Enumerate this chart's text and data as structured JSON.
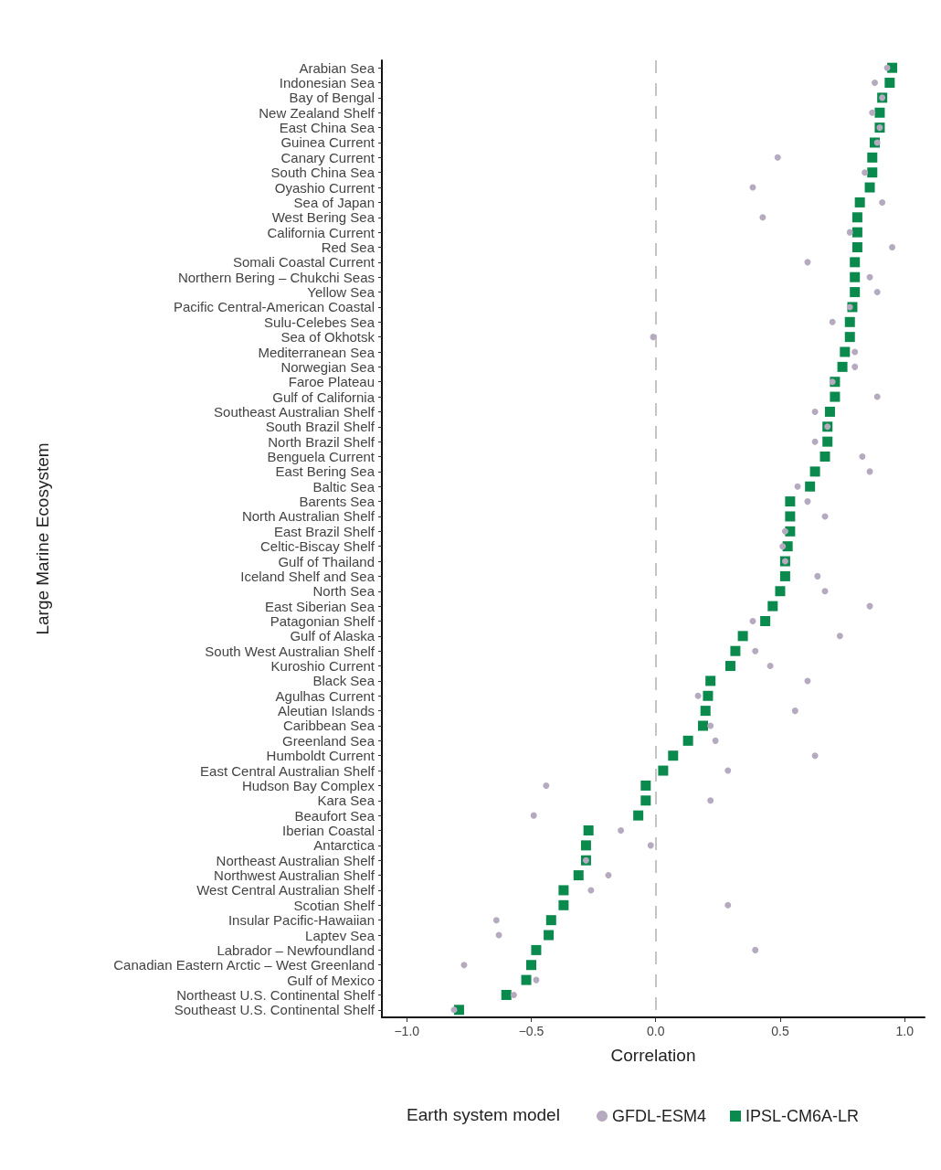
{
  "chart_data": {
    "type": "scatter",
    "orientation": "horizontal",
    "xlabel": "Correlation",
    "ylabel": "Large Marine Ecosystem",
    "legend_title": "Earth system model",
    "legend": "bottom",
    "grid": false,
    "categories": [
      "Arabian Sea",
      "Indonesian Sea",
      "Bay of Bengal",
      "New Zealand Shelf",
      "East China Sea",
      "Guinea Current",
      "Canary Current",
      "South China Sea",
      "Oyashio Current",
      "Sea of Japan",
      "West Bering Sea",
      "California Current",
      "Red Sea",
      "Somali Coastal Current",
      "Northern Bering – Chukchi Seas",
      "Yellow Sea",
      "Pacific Central-American Coastal",
      "Sulu-Celebes Sea",
      "Sea of Okhotsk",
      "Mediterranean Sea",
      "Norwegian Sea",
      "Faroe Plateau",
      "Gulf of California",
      "Southeast Australian Shelf",
      "South Brazil Shelf",
      "North Brazil Shelf",
      "Benguela Current",
      "East Bering Sea",
      "Baltic Sea",
      "Barents Sea",
      "North Australian Shelf",
      "East Brazil Shelf",
      "Celtic-Biscay Shelf",
      "Gulf of Thailand",
      "Iceland Shelf and Sea",
      "North Sea",
      "East Siberian Sea",
      "Patagonian Shelf",
      "Gulf of Alaska",
      "South West Australian Shelf",
      "Kuroshio Current",
      "Black Sea",
      "Agulhas Current",
      "Aleutian Islands",
      "Caribbean Sea",
      "Greenland Sea",
      "Humboldt Current",
      "East Central Australian Shelf",
      "Hudson Bay Complex",
      "Kara Sea",
      "Beaufort Sea",
      "Iberian Coastal",
      "Antarctica",
      "Northeast Australian Shelf",
      "Northwest Australian Shelf",
      "West Central Australian Shelf",
      "Scotian Shelf",
      "Insular Pacific-Hawaiian",
      "Laptev Sea",
      "Labrador – Newfoundland",
      "Canadian Eastern Arctic – West Greenland",
      "Gulf of Mexico",
      "Northeast U.S. Continental Shelf",
      "Southeast U.S. Continental Shelf"
    ],
    "series": [
      {
        "name": "GFDL-ESM4",
        "marker": "circle",
        "color": "#b5aabf",
        "values": [
          0.93,
          0.88,
          0.91,
          0.87,
          0.9,
          0.89,
          0.49,
          0.84,
          0.39,
          0.91,
          0.43,
          0.78,
          0.95,
          0.61,
          0.86,
          0.89,
          0.78,
          0.71,
          -0.01,
          0.8,
          0.8,
          0.71,
          0.89,
          0.64,
          0.69,
          0.64,
          0.83,
          0.86,
          0.57,
          0.61,
          0.68,
          0.52,
          0.51,
          0.52,
          0.65,
          0.68,
          0.86,
          0.39,
          0.74,
          0.4,
          0.46,
          0.61,
          0.17,
          0.56,
          0.22,
          0.24,
          0.64,
          0.29,
          -0.44,
          0.22,
          -0.49,
          -0.14,
          -0.02,
          -0.28,
          -0.19,
          -0.26,
          0.29,
          -0.64,
          -0.63,
          0.4,
          -0.77,
          -0.48,
          -0.57,
          -0.81
        ]
      },
      {
        "name": "IPSL-CM6A-LR",
        "marker": "square",
        "color": "#0a8a4c",
        "values": [
          0.95,
          0.94,
          0.91,
          0.9,
          0.9,
          0.88,
          0.87,
          0.87,
          0.86,
          0.82,
          0.81,
          0.81,
          0.81,
          0.8,
          0.8,
          0.8,
          0.79,
          0.78,
          0.78,
          0.76,
          0.75,
          0.72,
          0.72,
          0.7,
          0.69,
          0.69,
          0.68,
          0.64,
          0.62,
          0.54,
          0.54,
          0.54,
          0.53,
          0.52,
          0.52,
          0.5,
          0.47,
          0.44,
          0.35,
          0.32,
          0.3,
          0.22,
          0.21,
          0.2,
          0.19,
          0.13,
          0.07,
          0.03,
          -0.04,
          -0.04,
          -0.07,
          -0.27,
          -0.28,
          -0.28,
          -0.31,
          -0.37,
          -0.37,
          -0.42,
          -0.43,
          -0.48,
          -0.5,
          -0.52,
          -0.6,
          -0.79
        ]
      }
    ],
    "xlim": [
      -1.1,
      1.08
    ],
    "xticks": [
      {
        "value": -1,
        "label": "−1.0"
      },
      {
        "value": -0.5,
        "label": "−0.5"
      },
      {
        "value": 0,
        "label": "0.0"
      },
      {
        "value": 0.5,
        "label": "0.5"
      },
      {
        "value": 1,
        "label": "1.0"
      }
    ],
    "ref_lines": [
      {
        "axis": "x",
        "value": 0,
        "color": "#c4c4c4",
        "line_style": "dashed"
      }
    ]
  }
}
